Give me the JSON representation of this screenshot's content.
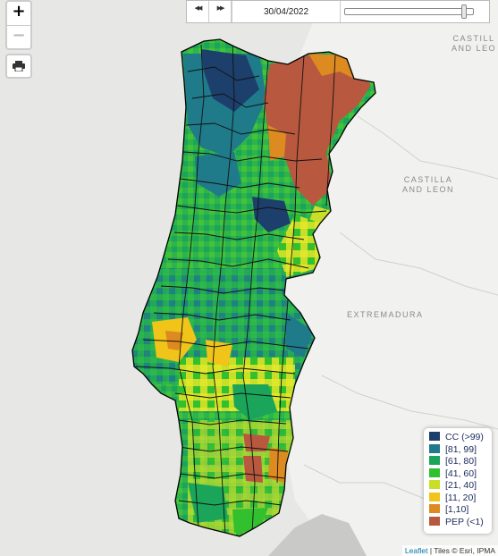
{
  "map": {
    "regions": {
      "castilla_top": "CASTILL\nAND LEO",
      "castilla_leon": "CASTILLA\nAND LEON",
      "extremadura": "EXTREMADURA"
    },
    "palette": {
      "CC": "#1d3f6b",
      "r81_99": "#1f7a8a",
      "r61_80": "#1aa55b",
      "r41_60": "#33c02e",
      "r21_40": "#c7df29",
      "r11_20": "#f0c419",
      "r1_10": "#dd8a20",
      "PEP": "#b8583f"
    }
  },
  "controls": {
    "zoom_in": "+",
    "zoom_out": "−",
    "print_icon": "printer-icon"
  },
  "timebar": {
    "back_label": "◀◀",
    "forward_label": "▶▶",
    "date": "30/04/2022",
    "position": 1.0
  },
  "legend": {
    "items": [
      {
        "label": "CC (>99)",
        "color": "#1d3f6b"
      },
      {
        "label": "[81, 99]",
        "color": "#1f7a8a"
      },
      {
        "label": "[61, 80]",
        "color": "#1aa55b"
      },
      {
        "label": "[41, 60]",
        "color": "#33c02e"
      },
      {
        "label": "[21, 40]",
        "color": "#c7df29"
      },
      {
        "label": "[11, 20]",
        "color": "#f0c419"
      },
      {
        "label": "[1,10]",
        "color": "#dd8a20"
      },
      {
        "label": "PEP (<1)",
        "color": "#b8583f"
      }
    ]
  },
  "attribution": {
    "leaflet": "Leaflet",
    "sep": " | ",
    "tiles": "Tiles © Esri, IPMA"
  }
}
